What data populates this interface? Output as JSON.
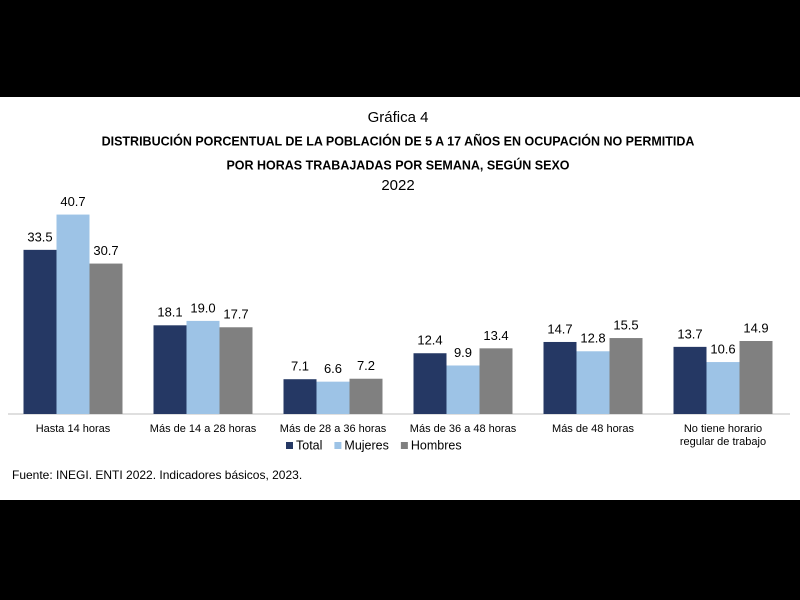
{
  "chart_data": {
    "type": "bar",
    "supertitle": "Gráfica 4",
    "title": "DISTRIBUCIÓN  PORCENTUAL  DE LA  POBLACIÓN  DE 5 A 17 AÑOS  EN OCUPACIÓN  NO PERMITIDA",
    "title_line2": "POR HORAS  TRABAJADAS   POR SEMANA,  SEGÚN SEXO",
    "subtitle": "2022",
    "categories": [
      "Hasta 14 horas",
      "Más de 14 a 28 horas",
      "Más de 28 a 36 horas",
      "Más de 36 a 48 horas",
      "Más de 48 horas",
      "No tiene horario regular de trabajo"
    ],
    "series": [
      {
        "name": "Total",
        "color": "#253864",
        "values": [
          33.5,
          18.1,
          7.1,
          12.4,
          14.7,
          13.7
        ],
        "value_labels": [
          "33.5",
          "18.1",
          "7.1",
          "12.4",
          "14.7",
          "13.7"
        ]
      },
      {
        "name": "Mujeres",
        "color": "#9dc3e6",
        "values": [
          40.7,
          19.0,
          6.6,
          9.9,
          12.8,
          10.6
        ],
        "value_labels": [
          "40.7",
          "19.0",
          "6.6",
          "9.9",
          "12.8",
          "10.6"
        ]
      },
      {
        "name": "Hombres",
        "color": "#808080",
        "values": [
          30.7,
          17.7,
          7.2,
          13.4,
          15.5,
          14.9
        ],
        "value_labels": [
          "30.7",
          "17.7",
          "7.2",
          "13.4",
          "15.5",
          "14.9"
        ]
      }
    ],
    "legend": "bottom",
    "source": "Fuente:  INEGI. ENTI 2022. Indicadores  básicos, 2023."
  }
}
